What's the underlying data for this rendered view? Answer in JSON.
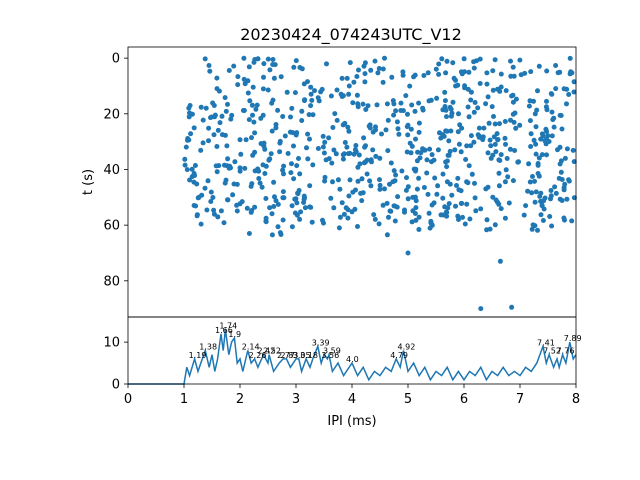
{
  "chart_data": [
    {
      "type": "scatter",
      "title": "20230424_074243UTC_V12",
      "xlabel": "",
      "ylabel": "t (s)",
      "xlim": [
        0,
        8
      ],
      "ylim": [
        93,
        -4
      ],
      "y_inverted": true,
      "yticks": [
        "0",
        "20",
        "40",
        "60",
        "80"
      ],
      "color": "#1f77b4",
      "point_clusters": [
        {
          "x_range": [
            1.0,
            8.0
          ],
          "y_range": [
            15,
            60
          ],
          "count": 620
        },
        {
          "x_range": [
            1.35,
            8.0
          ],
          "y_range": [
            0,
            15
          ],
          "count": 150
        },
        {
          "x_range": [
            1.9,
            7.9
          ],
          "y_range": [
            60,
            64
          ],
          "count": 18
        }
      ],
      "outliers": [
        {
          "x": 5.0,
          "y": 70
        },
        {
          "x": 6.65,
          "y": 73
        },
        {
          "x": 6.3,
          "y": 90
        },
        {
          "x": 6.85,
          "y": 89.5
        }
      ]
    },
    {
      "type": "line",
      "title": "",
      "xlabel": "IPI (ms)",
      "ylabel": "",
      "xlim": [
        0,
        8
      ],
      "ylim": [
        0,
        16
      ],
      "xticks": [
        "0",
        "1",
        "2",
        "3",
        "4",
        "5",
        "6",
        "7",
        "8"
      ],
      "yticks": [
        "0",
        "10"
      ],
      "color": "#1f77b4",
      "series_points": [
        [
          0,
          0
        ],
        [
          1.0,
          0
        ],
        [
          1.05,
          4
        ],
        [
          1.1,
          2
        ],
        [
          1.19,
          6
        ],
        [
          1.25,
          3
        ],
        [
          1.3,
          5
        ],
        [
          1.38,
          8
        ],
        [
          1.45,
          4
        ],
        [
          1.5,
          7
        ],
        [
          1.55,
          3
        ],
        [
          1.6,
          6
        ],
        [
          1.66,
          12
        ],
        [
          1.7,
          8
        ],
        [
          1.74,
          13
        ],
        [
          1.8,
          7
        ],
        [
          1.85,
          10
        ],
        [
          1.9,
          11
        ],
        [
          1.95,
          5
        ],
        [
          2.0,
          6
        ],
        [
          2.05,
          3
        ],
        [
          2.14,
          8
        ],
        [
          2.2,
          5
        ],
        [
          2.26,
          6
        ],
        [
          2.32,
          4
        ],
        [
          2.42,
          7
        ],
        [
          2.5,
          5
        ],
        [
          2.52,
          7
        ],
        [
          2.6,
          3
        ],
        [
          2.7,
          5
        ],
        [
          2.77,
          6
        ],
        [
          2.83,
          6
        ],
        [
          2.9,
          4
        ],
        [
          3.0,
          6
        ],
        [
          3.05,
          6
        ],
        [
          3.1,
          3
        ],
        [
          3.18,
          6
        ],
        [
          3.25,
          4
        ],
        [
          3.3,
          6
        ],
        [
          3.39,
          9
        ],
        [
          3.45,
          5
        ],
        [
          3.5,
          7
        ],
        [
          3.56,
          6
        ],
        [
          3.59,
          7
        ],
        [
          3.65,
          3
        ],
        [
          3.75,
          5
        ],
        [
          3.85,
          2
        ],
        [
          4.0,
          5
        ],
        [
          4.1,
          2
        ],
        [
          4.2,
          4
        ],
        [
          4.3,
          1
        ],
        [
          4.4,
          3
        ],
        [
          4.5,
          2
        ],
        [
          4.6,
          4
        ],
        [
          4.7,
          3
        ],
        [
          4.79,
          6
        ],
        [
          4.86,
          4
        ],
        [
          4.92,
          8
        ],
        [
          5.0,
          3
        ],
        [
          5.1,
          5
        ],
        [
          5.2,
          2
        ],
        [
          5.3,
          4
        ],
        [
          5.4,
          1
        ],
        [
          5.5,
          3
        ],
        [
          5.6,
          2
        ],
        [
          5.7,
          4
        ],
        [
          5.8,
          1
        ],
        [
          5.9,
          3
        ],
        [
          6.0,
          1
        ],
        [
          6.1,
          3
        ],
        [
          6.2,
          2
        ],
        [
          6.3,
          4
        ],
        [
          6.4,
          1
        ],
        [
          6.5,
          3
        ],
        [
          6.6,
          2
        ],
        [
          6.7,
          4
        ],
        [
          6.8,
          2
        ],
        [
          6.9,
          3
        ],
        [
          7.0,
          2
        ],
        [
          7.1,
          4
        ],
        [
          7.2,
          3
        ],
        [
          7.3,
          5
        ],
        [
          7.41,
          9
        ],
        [
          7.47,
          5
        ],
        [
          7.52,
          7
        ],
        [
          7.6,
          4
        ],
        [
          7.66,
          6
        ],
        [
          7.7,
          4
        ],
        [
          7.76,
          7
        ],
        [
          7.82,
          5
        ],
        [
          7.89,
          10
        ],
        [
          7.95,
          6
        ],
        [
          8.0,
          7
        ]
      ],
      "peak_labels": [
        {
          "x": 1.19,
          "y": 6,
          "text": "1.19"
        },
        {
          "x": 1.38,
          "y": 8,
          "text": "1.38"
        },
        {
          "x": 1.66,
          "y": 12,
          "text": "1.66"
        },
        {
          "x": 1.74,
          "y": 13,
          "text": "1.74"
        },
        {
          "x": 1.9,
          "y": 11,
          "text": "1.9"
        },
        {
          "x": 2.14,
          "y": 8,
          "text": "2.14"
        },
        {
          "x": 2.26,
          "y": 6,
          "text": "2.26"
        },
        {
          "x": 2.42,
          "y": 7,
          "text": "2.42"
        },
        {
          "x": 2.52,
          "y": 7,
          "text": "2.52"
        },
        {
          "x": 2.77,
          "y": 6,
          "text": "2.77"
        },
        {
          "x": 2.83,
          "y": 6,
          "text": "2.83"
        },
        {
          "x": 3.05,
          "y": 6,
          "text": "3.05"
        },
        {
          "x": 3.18,
          "y": 6,
          "text": "3.18"
        },
        {
          "x": 3.39,
          "y": 9,
          "text": "3.39"
        },
        {
          "x": 3.56,
          "y": 6,
          "text": "3.56"
        },
        {
          "x": 3.59,
          "y": 7,
          "text": "3.59"
        },
        {
          "x": 4.0,
          "y": 5,
          "text": "4.0"
        },
        {
          "x": 4.79,
          "y": 6,
          "text": "4.79"
        },
        {
          "x": 4.92,
          "y": 8,
          "text": "4.92"
        },
        {
          "x": 7.41,
          "y": 9,
          "text": "7.41"
        },
        {
          "x": 7.52,
          "y": 7,
          "text": "7.52"
        },
        {
          "x": 7.76,
          "y": 7,
          "text": "7.76"
        },
        {
          "x": 7.89,
          "y": 10,
          "text": "7.89"
        }
      ]
    }
  ]
}
